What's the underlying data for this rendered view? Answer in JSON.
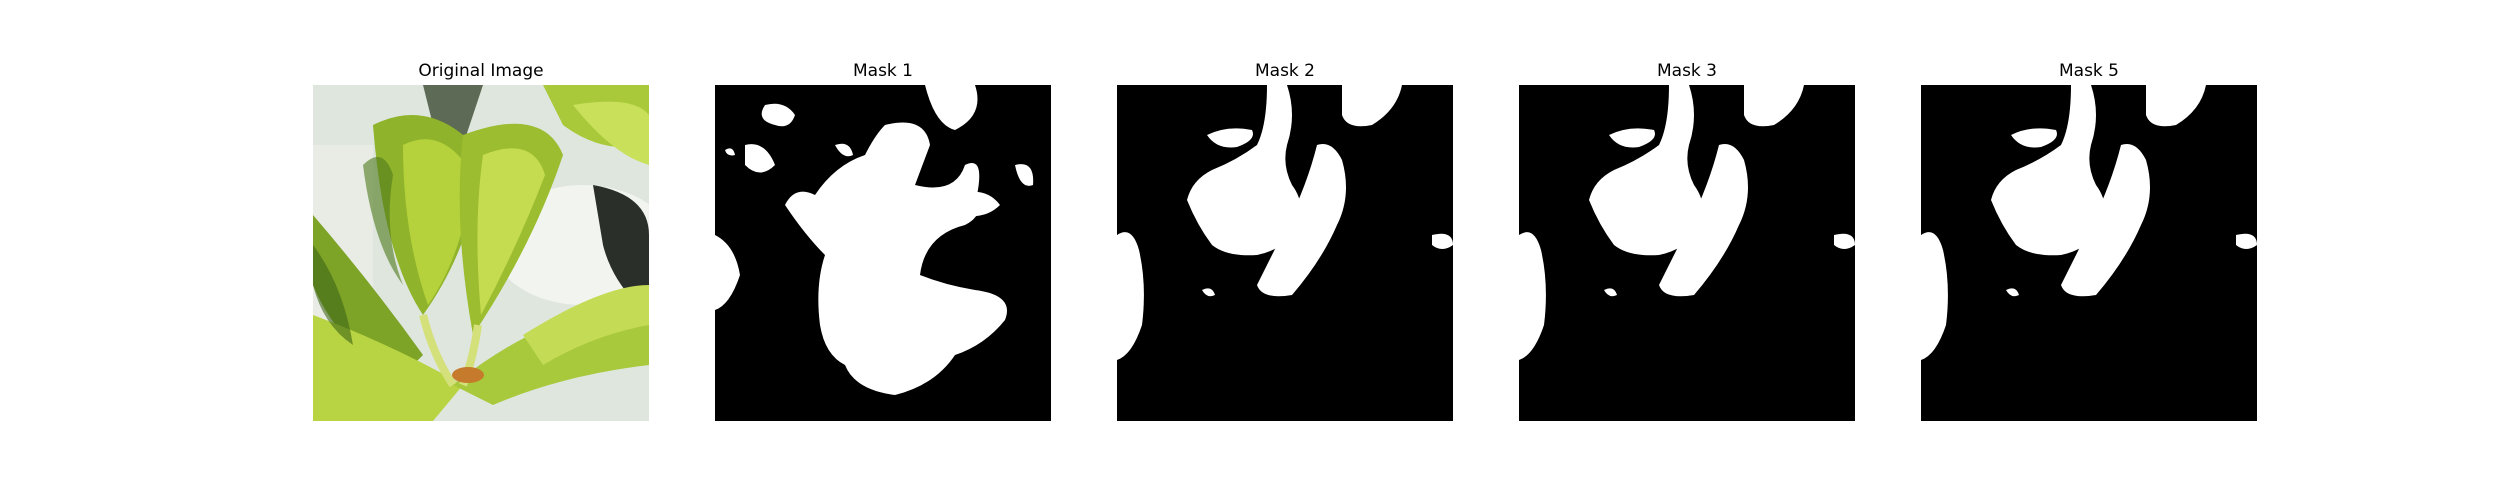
{
  "figure": {
    "panels": [
      {
        "title": "Original Image",
        "kind": "photo"
      },
      {
        "title": "Mask 1",
        "kind": "mask"
      },
      {
        "title": "Mask 2",
        "kind": "mask"
      },
      {
        "title": "Mask 3",
        "kind": "mask"
      },
      {
        "title": "Mask 5",
        "kind": "mask"
      }
    ],
    "colors": {
      "mask_foreground": "#ffffff",
      "mask_background": "#000000",
      "background_light": "#dfe6dd",
      "leaf_light": "#b5d23c",
      "leaf_mid": "#8fb32a",
      "leaf_dark": "#4f7a1c",
      "pot": "#f2f4ef"
    }
  }
}
